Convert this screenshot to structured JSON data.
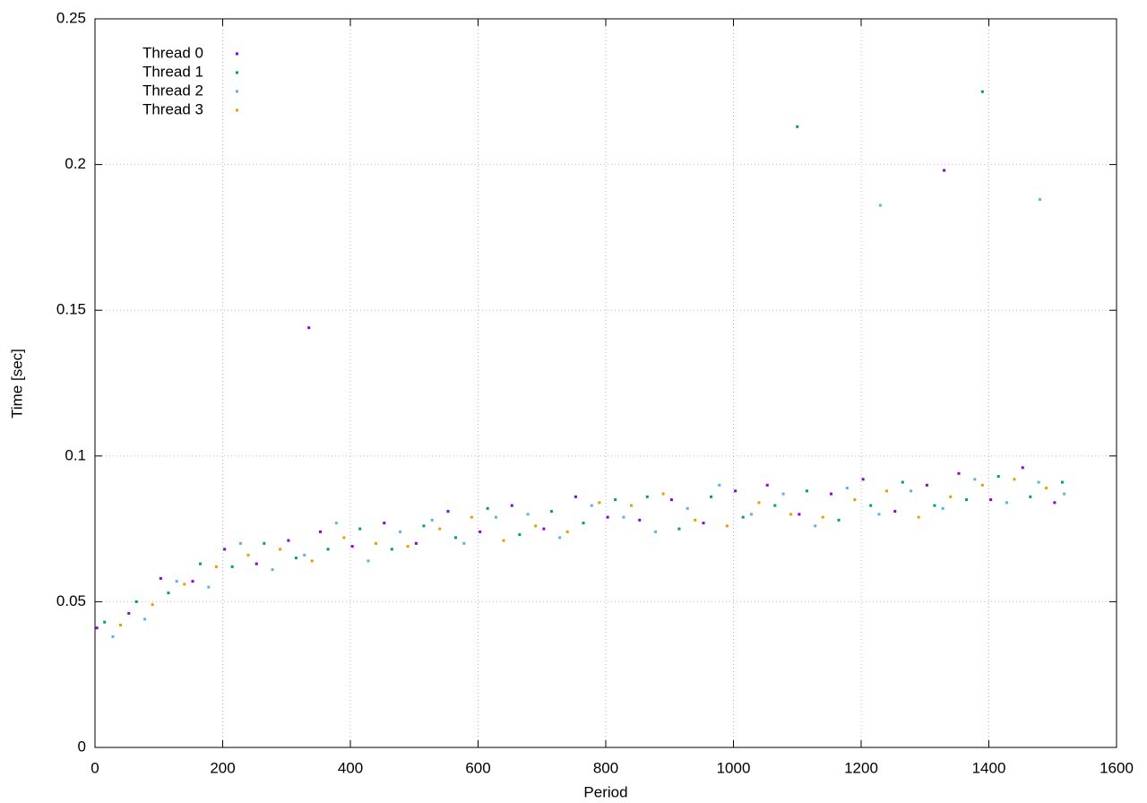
{
  "chart_data": {
    "type": "scatter",
    "xlabel": "Period",
    "ylabel": "Time [sec]",
    "xlim": [
      0,
      1600
    ],
    "xticks": [
      0,
      200,
      400,
      600,
      800,
      1000,
      1200,
      1400,
      1600
    ],
    "ylim": [
      0,
      0.25
    ],
    "yticks": [
      0,
      0.05,
      0.1,
      0.15,
      0.2,
      0.25
    ],
    "grid": true,
    "legend": "top-left",
    "series": [
      {
        "name": "Thread 0",
        "color": "#9400d3",
        "x": [
          3,
          53,
          103,
          153,
          203,
          253,
          303,
          353,
          403,
          453,
          503,
          553,
          603,
          653,
          703,
          753,
          803,
          853,
          903,
          953,
          1003,
          1053,
          1103,
          1153,
          1203,
          1253,
          1303,
          1353,
          1403,
          1453,
          1503,
          335,
          1330
        ],
        "values": [
          0.041,
          0.046,
          0.058,
          0.057,
          0.068,
          0.063,
          0.071,
          0.074,
          0.069,
          0.077,
          0.07,
          0.081,
          0.074,
          0.083,
          0.075,
          0.086,
          0.079,
          0.078,
          0.085,
          0.077,
          0.088,
          0.09,
          0.08,
          0.087,
          0.092,
          0.081,
          0.09,
          0.094,
          0.085,
          0.096,
          0.084,
          0.144,
          0.198
        ]
      },
      {
        "name": "Thread 1",
        "color": "#009e73",
        "x": [
          15,
          65,
          115,
          165,
          215,
          265,
          315,
          365,
          415,
          465,
          515,
          565,
          615,
          665,
          715,
          765,
          815,
          865,
          915,
          965,
          1015,
          1065,
          1115,
          1165,
          1215,
          1265,
          1315,
          1365,
          1415,
          1465,
          1515,
          1100,
          1390
        ],
        "values": [
          0.043,
          0.05,
          0.053,
          0.063,
          0.062,
          0.07,
          0.065,
          0.068,
          0.075,
          0.068,
          0.076,
          0.072,
          0.082,
          0.073,
          0.081,
          0.077,
          0.085,
          0.086,
          0.075,
          0.086,
          0.079,
          0.083,
          0.088,
          0.078,
          0.083,
          0.091,
          0.083,
          0.085,
          0.093,
          0.086,
          0.091,
          0.213,
          0.225
        ]
      },
      {
        "name": "Thread 2",
        "color": "#56b4e9",
        "x": [
          28,
          78,
          128,
          178,
          228,
          278,
          328,
          378,
          428,
          478,
          528,
          578,
          628,
          678,
          728,
          778,
          828,
          878,
          928,
          978,
          1028,
          1078,
          1128,
          1178,
          1228,
          1278,
          1328,
          1378,
          1428,
          1478,
          1518,
          1230,
          1480
        ],
        "values": [
          0.038,
          0.044,
          0.057,
          0.055,
          0.07,
          0.061,
          0.066,
          0.077,
          0.064,
          0.074,
          0.078,
          0.07,
          0.079,
          0.08,
          0.072,
          0.083,
          0.079,
          0.074,
          0.082,
          0.09,
          0.08,
          0.087,
          0.076,
          0.089,
          0.08,
          0.088,
          0.082,
          0.092,
          0.084,
          0.091,
          0.087,
          0.186,
          0.188
        ]
      },
      {
        "name": "Thread 3",
        "color": "#e69f00",
        "x": [
          40,
          90,
          140,
          190,
          240,
          290,
          340,
          390,
          440,
          490,
          540,
          590,
          640,
          690,
          740,
          790,
          840,
          890,
          940,
          990,
          1040,
          1090,
          1140,
          1190,
          1240,
          1290,
          1340,
          1390,
          1440,
          1490
        ],
        "values": [
          0.042,
          0.049,
          0.056,
          0.062,
          0.066,
          0.068,
          0.064,
          0.072,
          0.07,
          0.069,
          0.075,
          0.079,
          0.071,
          0.076,
          0.074,
          0.084,
          0.083,
          0.087,
          0.078,
          0.076,
          0.084,
          0.08,
          0.079,
          0.085,
          0.088,
          0.079,
          0.086,
          0.09,
          0.092,
          0.089
        ]
      }
    ]
  }
}
